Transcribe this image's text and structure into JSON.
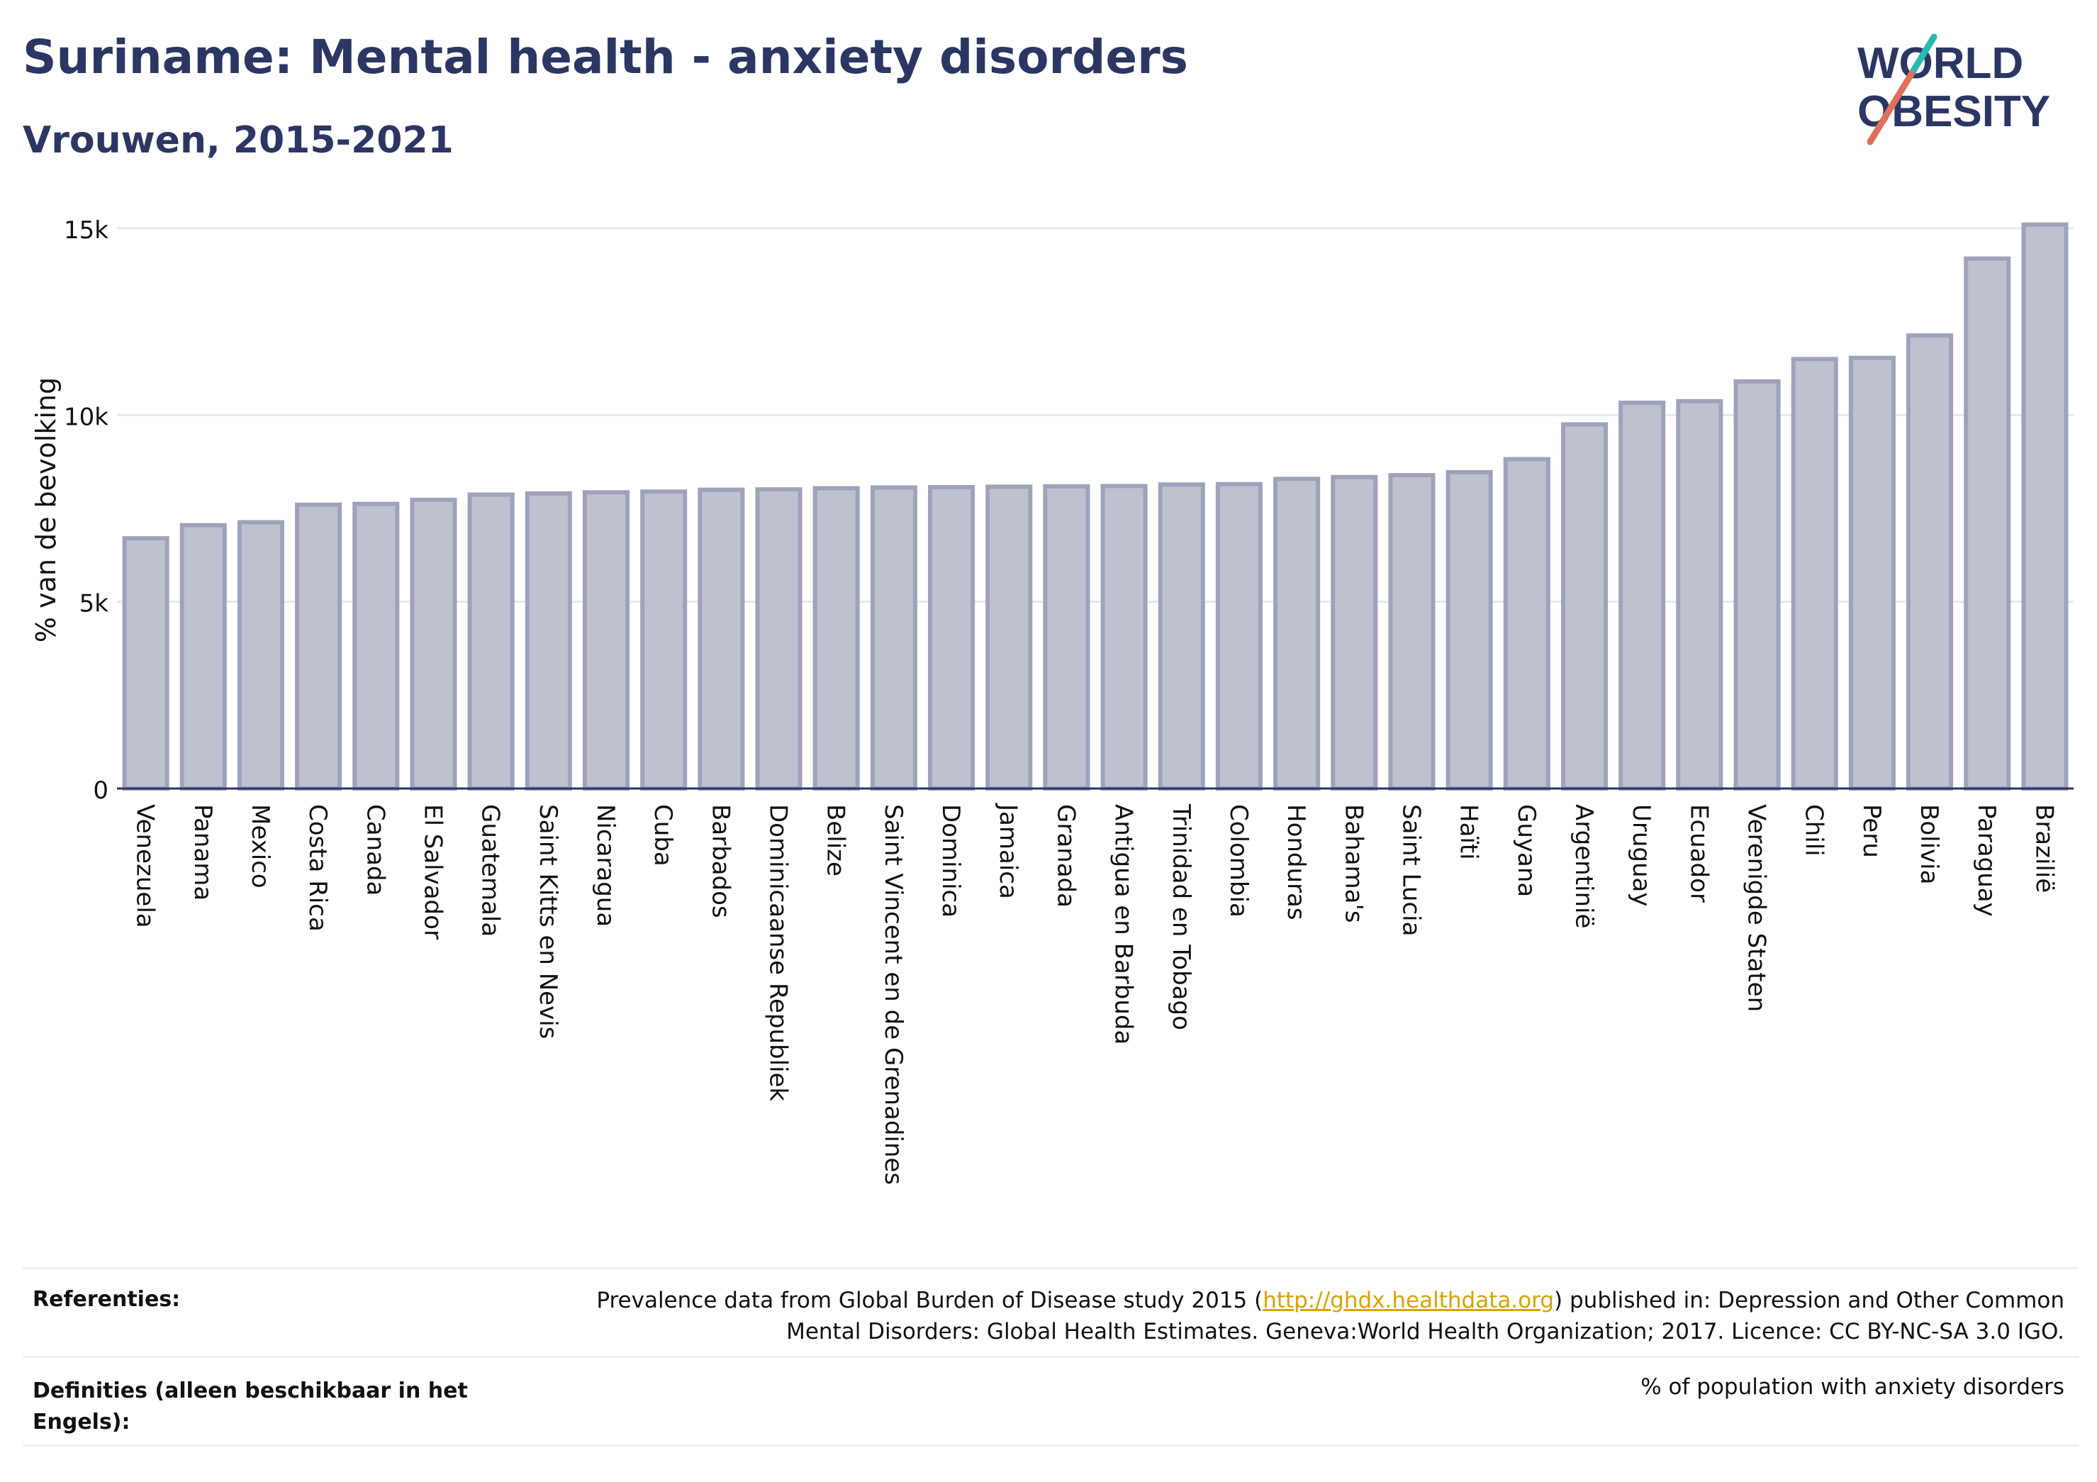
{
  "header": {
    "title": "Suriname: Mental health - anxiety disorders",
    "subtitle": "Vrouwen, 2015-2021"
  },
  "logo": {
    "line1": "WORLD",
    "line2": "OBESITY",
    "colors": {
      "text": "#2b3663",
      "slash_red": "#e0705a",
      "slash_teal": "#2bb8b0"
    }
  },
  "colors": {
    "bar_fill": "#bec2cf",
    "bar_stroke": "#9ea3bb",
    "grid": "#e6e8ee",
    "axis": "#2b3663",
    "text": "#111111",
    "link": "#d9a400"
  },
  "chart_data": {
    "type": "bar",
    "ylabel": "% van de bevolking",
    "ylim": [
      0,
      15000
    ],
    "yticks": [
      {
        "value": 0,
        "label": "0"
      },
      {
        "value": 5000,
        "label": "5k"
      },
      {
        "value": 10000,
        "label": "10k"
      },
      {
        "value": 15000,
        "label": "15k"
      }
    ],
    "grid": true,
    "categories": [
      "Venezuela",
      "Panama",
      "Mexico",
      "Costa Rica",
      "Canada",
      "El Salvador",
      "Guatemala",
      "Saint Kitts en Nevis",
      "Nicaragua",
      "Cuba",
      "Barbados",
      "Dominicaanse Republiek",
      "Belize",
      "Saint Vincent en de Grenadines",
      "Dominica",
      "Jamaica",
      "Granada",
      "Antigua en Barbuda",
      "Trinidad en Tobago",
      "Colombia",
      "Honduras",
      "Bahama's",
      "Saint Lucia",
      "Haïti",
      "Guyana",
      "Argentinië",
      "Uruguay",
      "Ecuador",
      "Verenigde Staten",
      "Chili",
      "Peru",
      "Bolivia",
      "Paraguay",
      "Brazilië"
    ],
    "values": [
      6700,
      7050,
      7130,
      7600,
      7620,
      7730,
      7870,
      7900,
      7930,
      7950,
      8000,
      8010,
      8040,
      8060,
      8070,
      8080,
      8090,
      8100,
      8140,
      8150,
      8290,
      8340,
      8390,
      8470,
      8820,
      9750,
      10330,
      10370,
      10900,
      11500,
      11530,
      12130,
      14190,
      15100
    ]
  },
  "footer": {
    "references_label": "Referenties:",
    "references_pre": "Prevalence data from Global Burden of Disease study 2015 (",
    "references_link": "http://ghdx.healthdata.org",
    "references_post": ") published in: Depression and Other Common Mental Disorders: Global Health Estimates. Geneva:World Health Organization; 2017. Licence: CC BY-NC-SA 3.0 IGO.",
    "definitions_label": "Definities (alleen beschikbaar in het Engels):",
    "definitions_text": "% of population with anxiety disorders"
  }
}
